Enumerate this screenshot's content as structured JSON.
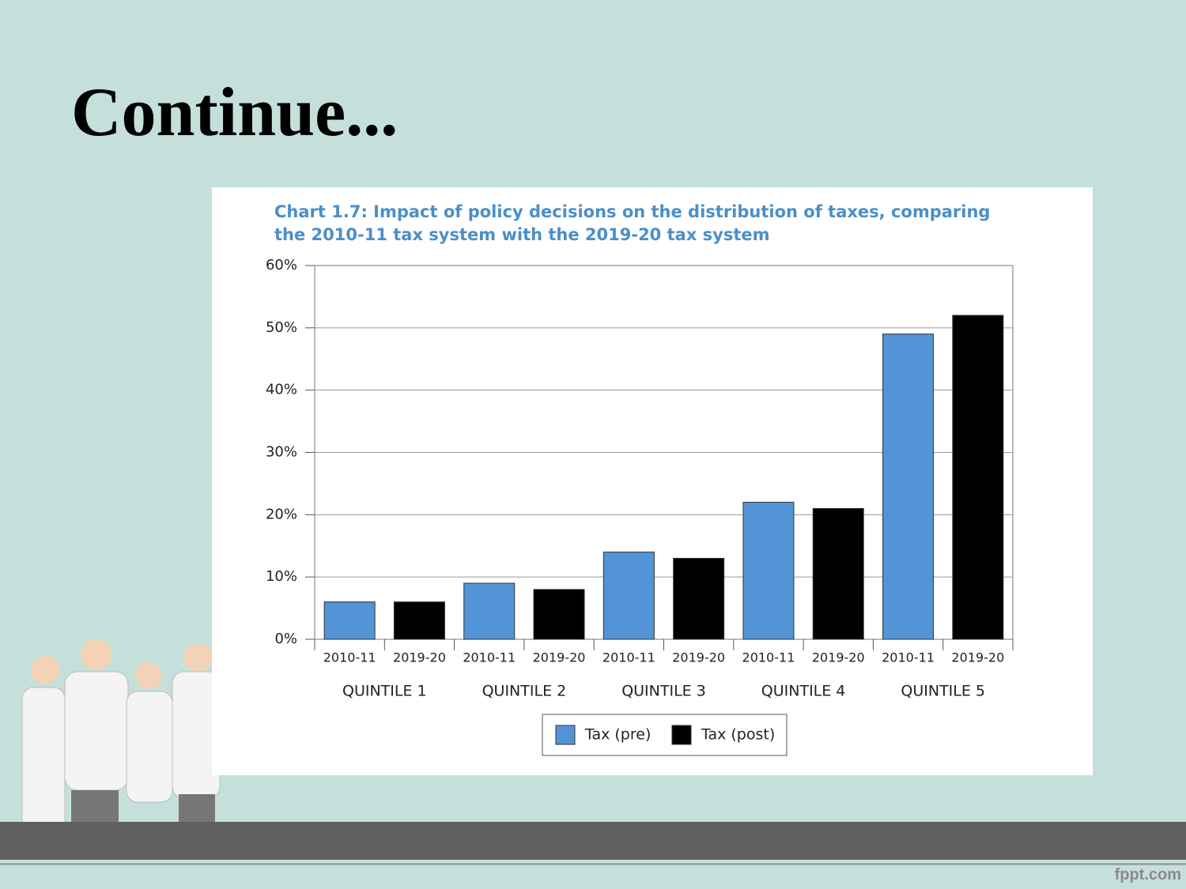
{
  "slide_title": "Continue...",
  "footer": "fppt.com",
  "chart_data": {
    "type": "bar",
    "title": [
      "Chart 1.7: Impact of policy decisions on the distribution of taxes, comparing",
      "the 2010-11 tax system with the 2019-20 tax system"
    ],
    "categories": [
      "QUINTILE 1",
      "QUINTILE 2",
      "QUINTILE 3",
      "QUINTILE 4",
      "QUINTILE 5"
    ],
    "sub_categories": [
      "2010-11",
      "2019-20"
    ],
    "series": [
      {
        "name": "Tax (pre)",
        "color": "#5394d6",
        "values": [
          6,
          9,
          14,
          22,
          49
        ]
      },
      {
        "name": "Tax (post)",
        "color": "#000000",
        "values": [
          6,
          8,
          13,
          21,
          52
        ]
      }
    ],
    "ylim": [
      0,
      60
    ],
    "yticks": [
      {
        "value": 0,
        "label": "0%"
      },
      {
        "value": 10,
        "label": "10%"
      },
      {
        "value": 20,
        "label": "20%"
      },
      {
        "value": 30,
        "label": "30%"
      },
      {
        "value": 40,
        "label": "40%"
      },
      {
        "value": 50,
        "label": "50%"
      },
      {
        "value": 60,
        "label": "60%"
      }
    ],
    "grid": true,
    "legend": "bottom"
  }
}
